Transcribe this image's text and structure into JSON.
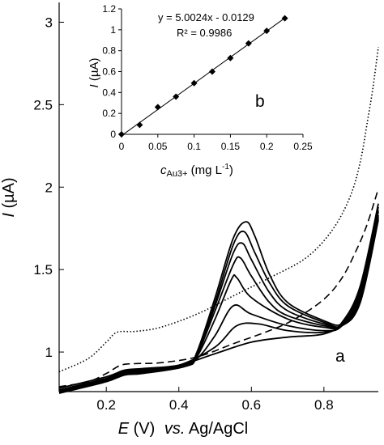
{
  "chart_data": [
    {
      "type": "line",
      "xlabel": {
        "symbol": "E",
        "unit": " (V)",
        "ref": "vs.",
        "rest": " Ag/AgCl"
      },
      "ylabel": {
        "symbol": "I",
        "unit": " (µA)"
      },
      "xlim": [
        0.07,
        0.95
      ],
      "ylim": [
        0.76,
        3.12
      ],
      "x_ticks": [
        0.2,
        0.4,
        0.6,
        0.8
      ],
      "x_tick_labels": [
        "0.2",
        "0.4",
        "0.6",
        "0.8"
      ],
      "y_ticks": [
        1,
        1.5,
        2,
        2.5,
        3
      ],
      "y_tick_labels": [
        "1",
        "1.5",
        "2",
        "2.5",
        "3"
      ],
      "grid": false,
      "annotation": "a",
      "series": [
        {
          "style": "dotted",
          "values": [
            [
              0.07,
              0.88
            ],
            [
              0.15,
              0.96
            ],
            [
              0.2,
              1.06
            ],
            [
              0.23,
              1.12
            ],
            [
              0.28,
              1.125
            ],
            [
              0.35,
              1.15
            ],
            [
              0.45,
              1.23
            ],
            [
              0.55,
              1.34
            ],
            [
              0.65,
              1.45
            ],
            [
              0.75,
              1.57
            ],
            [
              0.82,
              1.73
            ],
            [
              0.87,
              1.93
            ],
            [
              0.9,
              2.15
            ],
            [
              0.92,
              2.4
            ],
            [
              0.935,
              2.6
            ],
            [
              0.95,
              2.85
            ]
          ]
        },
        {
          "style": "dashed",
          "values": [
            [
              0.07,
              0.79
            ],
            [
              0.15,
              0.82
            ],
            [
              0.2,
              0.87
            ],
            [
              0.24,
              0.92
            ],
            [
              0.28,
              0.93
            ],
            [
              0.35,
              0.935
            ],
            [
              0.45,
              0.97
            ],
            [
              0.55,
              1.05
            ],
            [
              0.65,
              1.13
            ],
            [
              0.72,
              1.2
            ],
            [
              0.8,
              1.32
            ],
            [
              0.85,
              1.45
            ],
            [
              0.89,
              1.62
            ],
            [
              0.92,
              1.78
            ],
            [
              0.95,
              1.99
            ]
          ]
        },
        {
          "style": "solid",
          "peak": 1.15,
          "values": [
            [
              0.07,
              0.78
            ],
            [
              0.2,
              0.85
            ],
            [
              0.25,
              0.89
            ],
            [
              0.3,
              0.9
            ],
            [
              0.4,
              0.92
            ],
            [
              0.5,
              0.99
            ],
            [
              0.6,
              1.06
            ],
            [
              0.7,
              1.09
            ],
            [
              0.8,
              1.11
            ],
            [
              0.85,
              1.18
            ],
            [
              0.9,
              1.4
            ],
            [
              0.95,
              1.9
            ]
          ]
        },
        {
          "style": "solid",
          "peak": 1.22,
          "values": [
            [
              0.07,
              0.77
            ],
            [
              0.2,
              0.84
            ],
            [
              0.25,
              0.885
            ],
            [
              0.3,
              0.895
            ],
            [
              0.4,
              0.92
            ],
            [
              0.5,
              1.03
            ],
            [
              0.56,
              1.16
            ],
            [
              0.62,
              1.17
            ],
            [
              0.7,
              1.13
            ],
            [
              0.8,
              1.12
            ],
            [
              0.85,
              1.17
            ],
            [
              0.9,
              1.38
            ],
            [
              0.95,
              1.88
            ]
          ]
        },
        {
          "style": "solid",
          "peak": 1.29,
          "values": [
            [
              0.07,
              0.77
            ],
            [
              0.2,
              0.84
            ],
            [
              0.25,
              0.88
            ],
            [
              0.3,
              0.89
            ],
            [
              0.4,
              0.915
            ],
            [
              0.45,
              0.96
            ],
            [
              0.5,
              1.1
            ],
            [
              0.55,
              1.28
            ],
            [
              0.6,
              1.23
            ],
            [
              0.7,
              1.16
            ],
            [
              0.8,
              1.13
            ],
            [
              0.85,
              1.16
            ],
            [
              0.9,
              1.36
            ],
            [
              0.95,
              1.86
            ]
          ]
        },
        {
          "style": "solid",
          "peak": 1.45,
          "values": [
            [
              0.07,
              0.76
            ],
            [
              0.2,
              0.835
            ],
            [
              0.25,
              0.875
            ],
            [
              0.3,
              0.885
            ],
            [
              0.42,
              0.915
            ],
            [
              0.45,
              0.97
            ],
            [
              0.5,
              1.2
            ],
            [
              0.545,
              1.44
            ],
            [
              0.56,
              1.45
            ],
            [
              0.6,
              1.33
            ],
            [
              0.7,
              1.2
            ],
            [
              0.8,
              1.15
            ],
            [
              0.85,
              1.16
            ],
            [
              0.9,
              1.34
            ],
            [
              0.95,
              1.85
            ]
          ]
        },
        {
          "style": "solid",
          "peak": 1.57,
          "values": [
            [
              0.07,
              0.76
            ],
            [
              0.2,
              0.83
            ],
            [
              0.25,
              0.87
            ],
            [
              0.3,
              0.88
            ],
            [
              0.42,
              0.915
            ],
            [
              0.45,
              0.98
            ],
            [
              0.5,
              1.25
            ],
            [
              0.55,
              1.53
            ],
            [
              0.57,
              1.57
            ],
            [
              0.6,
              1.46
            ],
            [
              0.65,
              1.3
            ],
            [
              0.7,
              1.22
            ],
            [
              0.8,
              1.16
            ],
            [
              0.85,
              1.16
            ],
            [
              0.9,
              1.32
            ],
            [
              0.95,
              1.83
            ]
          ]
        },
        {
          "style": "solid",
          "peak": 1.66,
          "values": [
            [
              0.07,
              0.76
            ],
            [
              0.2,
              0.83
            ],
            [
              0.25,
              0.87
            ],
            [
              0.3,
              0.88
            ],
            [
              0.42,
              0.915
            ],
            [
              0.45,
              0.99
            ],
            [
              0.5,
              1.28
            ],
            [
              0.55,
              1.6
            ],
            [
              0.575,
              1.66
            ],
            [
              0.6,
              1.56
            ],
            [
              0.65,
              1.36
            ],
            [
              0.7,
              1.25
            ],
            [
              0.8,
              1.17
            ],
            [
              0.85,
              1.16
            ],
            [
              0.9,
              1.31
            ],
            [
              0.95,
              1.82
            ]
          ]
        },
        {
          "style": "solid",
          "peak": 1.73,
          "values": [
            [
              0.07,
              0.755
            ],
            [
              0.2,
              0.825
            ],
            [
              0.25,
              0.865
            ],
            [
              0.3,
              0.875
            ],
            [
              0.42,
              0.915
            ],
            [
              0.45,
              0.99
            ],
            [
              0.5,
              1.3
            ],
            [
              0.55,
              1.65
            ],
            [
              0.58,
              1.73
            ],
            [
              0.61,
              1.6
            ],
            [
              0.65,
              1.42
            ],
            [
              0.7,
              1.28
            ],
            [
              0.8,
              1.18
            ],
            [
              0.85,
              1.16
            ],
            [
              0.9,
              1.3
            ],
            [
              0.95,
              1.81
            ]
          ]
        },
        {
          "style": "solid",
          "peak": 1.79,
          "values": [
            [
              0.07,
              0.75
            ],
            [
              0.2,
              0.82
            ],
            [
              0.25,
              0.86
            ],
            [
              0.3,
              0.87
            ],
            [
              0.42,
              0.915
            ],
            [
              0.45,
              1.0
            ],
            [
              0.5,
              1.33
            ],
            [
              0.55,
              1.69
            ],
            [
              0.585,
              1.79
            ],
            [
              0.61,
              1.7
            ],
            [
              0.65,
              1.47
            ],
            [
              0.7,
              1.3
            ],
            [
              0.8,
              1.19
            ],
            [
              0.85,
              1.17
            ],
            [
              0.9,
              1.3
            ],
            [
              0.95,
              1.8
            ]
          ]
        }
      ]
    },
    {
      "type": "scatter",
      "title": "b",
      "xlabel": {
        "symbol": "c",
        "sub": "Au3+",
        "unit": " (mg L",
        "sup": "-1",
        "close": ")"
      },
      "ylabel": {
        "symbol": "I",
        "unit": " (µA)"
      },
      "xlim": [
        0,
        0.25
      ],
      "ylim": [
        0,
        1.2
      ],
      "x_ticks": [
        0,
        0.05,
        0.1,
        0.15,
        0.2,
        0.25
      ],
      "x_tick_labels": [
        "0",
        "0.05",
        "0.1",
        "0.15",
        "0.2",
        "0.25"
      ],
      "y_ticks": [
        0,
        0.2,
        0.4,
        0.6,
        0.8,
        1,
        1.2
      ],
      "y_tick_labels": [
        "0",
        "0.2",
        "0.4",
        "0.6",
        "0.8",
        "1",
        "1.2"
      ],
      "grid": false,
      "x": [
        0,
        0.025,
        0.05,
        0.075,
        0.1,
        0.125,
        0.15,
        0.175,
        0.2,
        0.225
      ],
      "y": [
        0.0,
        0.09,
        0.26,
        0.36,
        0.49,
        0.6,
        0.73,
        0.87,
        0.99,
        1.11
      ],
      "fit": {
        "slope": 5.0024,
        "intercept": -0.0129
      },
      "equation": "y = 5.0024x - 0.0129",
      "r2": "R² = 0.9986"
    }
  ]
}
